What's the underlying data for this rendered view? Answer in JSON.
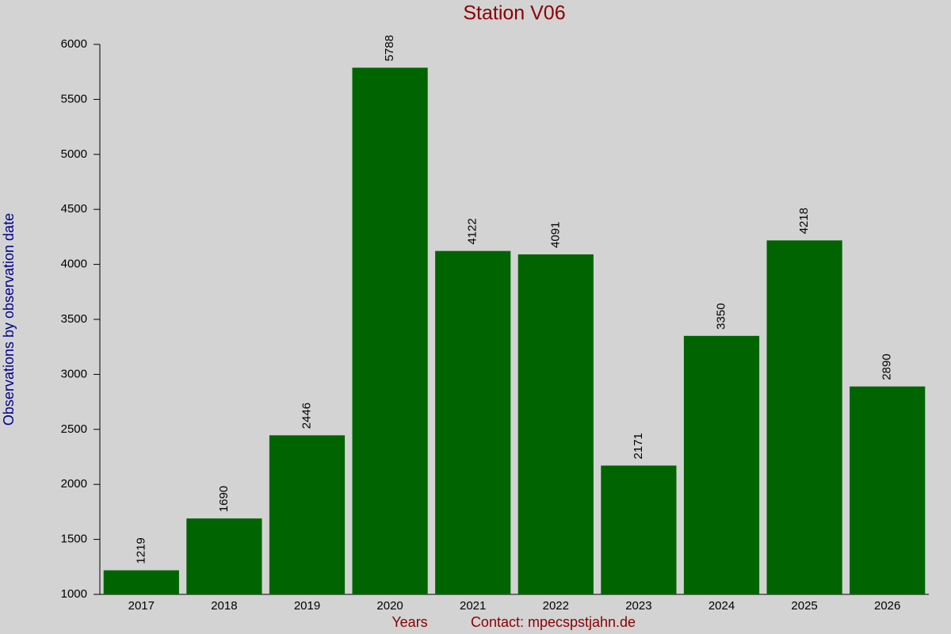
{
  "chart_data": {
    "type": "bar",
    "title": "Station V06",
    "x_label": "Years",
    "y_label": "Observations by observation date",
    "annotation": "Contact: mpecspstjahn.de",
    "categories": [
      "2017",
      "2018",
      "2019",
      "2020",
      "2021",
      "2022",
      "2023",
      "2024",
      "2025",
      "2026"
    ],
    "values": [
      1219,
      1690,
      2446,
      5788,
      4122,
      4091,
      2171,
      3350,
      4218,
      2890
    ],
    "color": "#006400",
    "ylim": [
      1000,
      6000
    ],
    "yticks": [
      1000,
      1500,
      2000,
      2500,
      3000,
      3500,
      4000,
      4500,
      5000,
      5500,
      6000
    ]
  }
}
